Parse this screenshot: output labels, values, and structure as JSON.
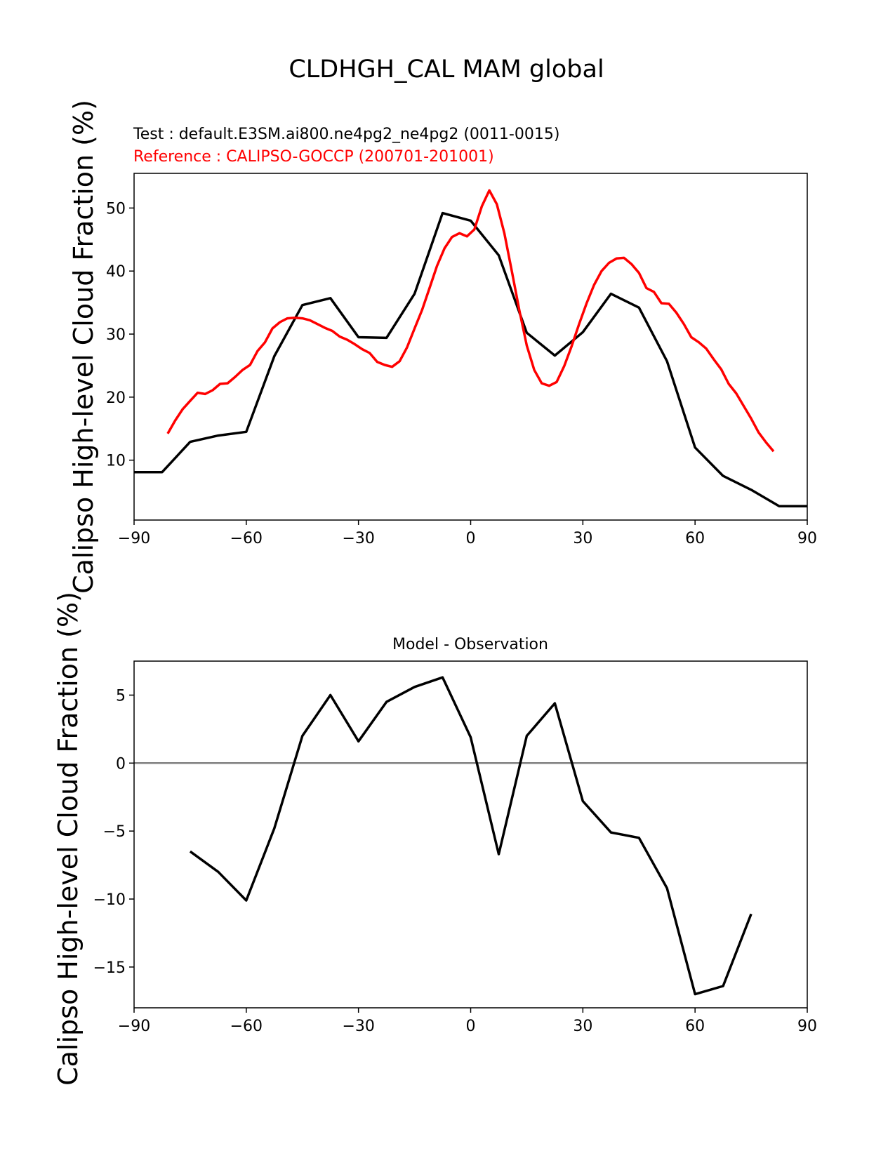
{
  "figure": {
    "title": "CLDHGH_CAL MAM global"
  },
  "chart_data": [
    {
      "type": "line",
      "legend_texts": [
        {
          "text": "Test : default.E3SM.ai800.ne4pg2_ne4pg2 (0011-0015)",
          "color": "#000000"
        },
        {
          "text": "Reference : CALIPSO-GOCCP (200701-201001)",
          "color": "#ff0000"
        }
      ],
      "xlabel": "",
      "ylabel": "Calipso High-level Cloud Fraction (%)",
      "xlim": [
        -90,
        90
      ],
      "ylim": [
        0.5,
        55.5
      ],
      "xticks": [
        -90,
        -60,
        -30,
        0,
        30,
        60,
        90
      ],
      "xtick_labels": [
        "−90",
        "−60",
        "−30",
        "0",
        "30",
        "60",
        "90"
      ],
      "yticks": [
        10,
        20,
        30,
        40,
        50
      ],
      "ytick_labels": [
        "10",
        "20",
        "30",
        "40",
        "50"
      ],
      "grid": false,
      "series": [
        {
          "name": "Test : default.E3SM.ai800.ne4pg2_ne4pg2 (0011-0015)",
          "color": "#000000",
          "x": [
            -90,
            -82.5,
            -75,
            -67.5,
            -60,
            -52.5,
            -45,
            -37.5,
            -30,
            -22.5,
            -15,
            -7.5,
            0,
            7.5,
            15,
            22.5,
            30,
            37.5,
            45,
            52.5,
            60,
            67.5,
            75,
            82.5,
            90
          ],
          "y": [
            8.1,
            8.1,
            12.9,
            13.9,
            14.5,
            26.5,
            34.6,
            35.7,
            29.5,
            29.4,
            36.4,
            49.2,
            48.0,
            42.5,
            30.2,
            26.6,
            30.3,
            36.4,
            34.2,
            25.7,
            12.0,
            7.5,
            5.3,
            2.7,
            2.7
          ]
        },
        {
          "name": "Reference : CALIPSO-GOCCP (200701-201001)",
          "color": "#ff0000",
          "x": [
            -81,
            -79,
            -77,
            -75,
            -73,
            -71,
            -69,
            -67,
            -65,
            -63,
            -61,
            -59,
            -57,
            -55,
            -53,
            -51,
            -49,
            -47,
            -45,
            -43,
            -41,
            -39,
            -37,
            -35,
            -33,
            -31,
            -29,
            -27,
            -25,
            -23,
            -21,
            -19,
            -17,
            -15,
            -13,
            -11,
            -9,
            -7,
            -5,
            -3,
            -1,
            1,
            3,
            5,
            7,
            9,
            11,
            13,
            15,
            17,
            19,
            21,
            23,
            25,
            27,
            29,
            31,
            33,
            35,
            37,
            39,
            41,
            43,
            45,
            47,
            49,
            51,
            53,
            55,
            57,
            59,
            61,
            63,
            65,
            67,
            69,
            71,
            73,
            75,
            77,
            79,
            81
          ],
          "y": [
            14.2,
            16.3,
            18.1,
            19.4,
            20.7,
            20.5,
            21.1,
            22.1,
            22.2,
            23.2,
            24.3,
            25.1,
            27.3,
            28.7,
            30.9,
            31.9,
            32.5,
            32.6,
            32.5,
            32.2,
            31.6,
            31.0,
            30.5,
            29.6,
            29.1,
            28.4,
            27.6,
            27.0,
            25.6,
            25.1,
            24.8,
            25.7,
            27.9,
            30.9,
            33.8,
            37.3,
            40.8,
            43.6,
            45.4,
            46.0,
            45.5,
            46.6,
            50.3,
            52.8,
            50.6,
            46.0,
            40.0,
            33.8,
            28.2,
            24.3,
            22.2,
            21.8,
            22.4,
            24.9,
            28.1,
            31.6,
            34.9,
            37.8,
            40.0,
            41.3,
            42.0,
            42.1,
            41.1,
            39.7,
            37.3,
            36.7,
            34.9,
            34.8,
            33.4,
            31.6,
            29.5,
            28.7,
            27.7,
            26.0,
            24.4,
            22.1,
            20.6,
            18.6,
            16.6,
            14.4,
            12.8,
            11.4
          ]
        }
      ]
    },
    {
      "type": "line",
      "title": "Model - Observation",
      "xlabel": "",
      "ylabel": "Calipso High-level Cloud Fraction (%)",
      "xlim": [
        -90,
        90
      ],
      "ylim": [
        -18.0,
        7.5
      ],
      "xticks": [
        -90,
        -60,
        -30,
        0,
        30,
        60,
        90
      ],
      "xtick_labels": [
        "−90",
        "−60",
        "−30",
        "0",
        "30",
        "60",
        "90"
      ],
      "yticks": [
        -15,
        -10,
        -5,
        0,
        5
      ],
      "ytick_labels": [
        "−15",
        "−10",
        "−5",
        "0",
        "5"
      ],
      "grid": false,
      "zero_line_color": "#808080",
      "series": [
        {
          "color": "#000000",
          "x": [
            -75,
            -67.5,
            -60,
            -52.5,
            -45,
            -37.5,
            -30,
            -22.5,
            -15,
            -7.5,
            0,
            7.5,
            15,
            22.5,
            30,
            37.5,
            45,
            52.5,
            60,
            67.5,
            75
          ],
          "y": [
            -6.5,
            -8.0,
            -10.1,
            -4.8,
            2.0,
            5.0,
            1.6,
            4.5,
            5.6,
            6.3,
            1.9,
            -6.7,
            2.0,
            4.4,
            -2.8,
            -5.1,
            -5.5,
            -9.2,
            -17.0,
            -16.4,
            -11.1
          ]
        }
      ]
    }
  ]
}
